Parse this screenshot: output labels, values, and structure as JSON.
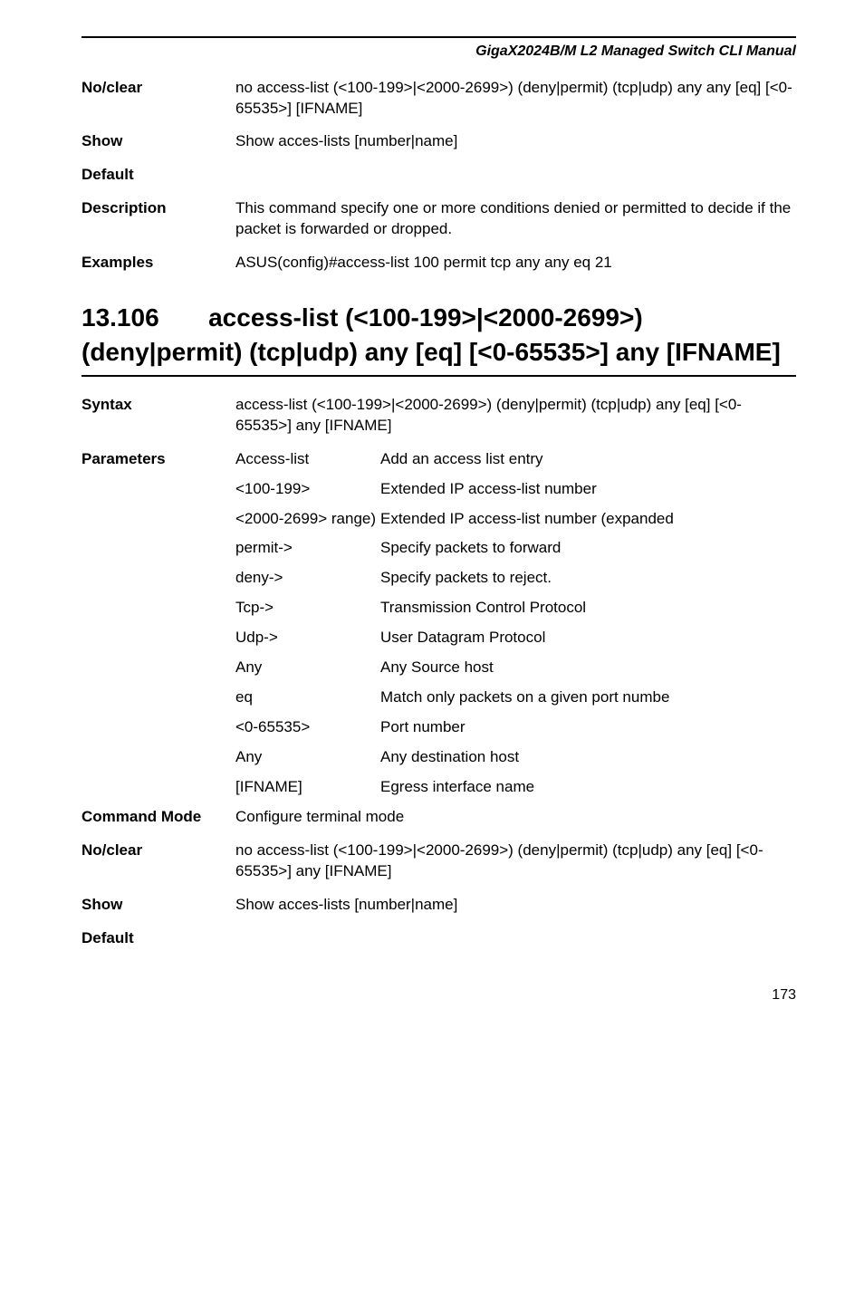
{
  "header": {
    "title": "GigaX2024B/M L2 Managed Switch CLI Manual"
  },
  "topBlock": {
    "rows": [
      {
        "term": "No/clear",
        "desc": "no access-list (<100-199>|<2000-2699>) (deny|permit) (tcp|udp) any any [eq] [<0-65535>] [IFNAME]"
      },
      {
        "term": "Show",
        "desc": "Show acces-lists [number|name]"
      },
      {
        "term": "Default",
        "desc": ""
      },
      {
        "term": "Description",
        "desc": "This command specify one or more conditions denied or permitted to decide if the packet is forwarded or dropped."
      },
      {
        "term": "Examples",
        "desc": "ASUS(config)#access-list 100 permit tcp any any eq 21"
      }
    ]
  },
  "section": {
    "number": "13.106",
    "title": "access-list (<100-199>|<2000-2699>) (deny|permit) (tcp|udp) any [eq] [<0-65535>] any [IFNAME]"
  },
  "bottomBlock": {
    "syntax": {
      "term": "Syntax",
      "desc": "access-list (<100-199>|<2000-2699>) (deny|permit) (tcp|udp) any [eq] [<0-65535>] any [IFNAME]"
    },
    "parametersLabel": "Parameters",
    "parameters": [
      {
        "name": "Access-list",
        "desc": "Add an access list entry"
      },
      {
        "name": "<100-199>",
        "desc": "Extended IP access-list number"
      },
      {
        "name": "<2000-2699> range)",
        "desc": "Extended IP access-list number (expanded"
      },
      {
        "name": "permit->",
        "desc": "Specify packets to forward"
      },
      {
        "name": "deny->",
        "desc": "Specify packets to reject."
      },
      {
        "name": "Tcp->",
        "desc": "Transmission Control Protocol"
      },
      {
        "name": "Udp->",
        "desc": "User Datagram Protocol"
      },
      {
        "name": "Any",
        "desc": "Any Source host"
      },
      {
        "name": "eq",
        "desc": "Match only packets on a given port numbe"
      },
      {
        "name": "<0-65535>",
        "desc": "Port number"
      },
      {
        "name": "Any",
        "desc": "Any destination host"
      },
      {
        "name": "[IFNAME]",
        "desc": "Egress interface name"
      }
    ],
    "tailRows": [
      {
        "term": "Command Mode",
        "desc": "Configure terminal mode"
      },
      {
        "term": "No/clear",
        "desc": "no access-list (<100-199>|<2000-2699>) (deny|permit) (tcp|udp) any [eq] [<0-65535>] any [IFNAME]"
      },
      {
        "term": "Show",
        "desc": "Show acces-lists [number|name]"
      },
      {
        "term": "Default",
        "desc": ""
      }
    ]
  },
  "pageNumber": "173"
}
